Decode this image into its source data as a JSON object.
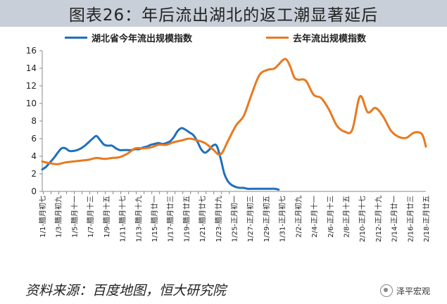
{
  "title": "图表26：年后流出湖北的返工潮显著延后",
  "footer": "资料来源：百度地图，恒大研究院",
  "watermark": "泽平宏观",
  "colors": {
    "series_2020": "#1f6fbf",
    "series_2019": "#e8791f",
    "title_band": "#c8cfd8"
  },
  "chart_data": {
    "type": "line",
    "title": "图表26：年后流出湖北的返工潮显著延后",
    "xlabel": "",
    "ylabel": "",
    "ylim": [
      0,
      16
    ],
    "yticks": [
      0,
      2,
      4,
      6,
      8,
      10,
      12,
      14,
      16
    ],
    "grid": false,
    "legend_position": "top",
    "x_tick_labels": [
      "1/1-腊月初七",
      "1/3-腊月初九",
      "1/5-腊月十一",
      "1/7-腊月十三",
      "1/9-腊月十五",
      "1/11-腊月十七",
      "1/13-腊月十九",
      "1/15-腊月廿一",
      "1/17-腊月廿三",
      "1/19-腊月廿五",
      "1/21-腊月廿七",
      "1/23-腊月廿九",
      "1/25-正月初一",
      "1/27-正月初三",
      "1/29-正月初五",
      "1/31-正月初七",
      "2/2-正月初九",
      "2/4-正月十一",
      "2/6-正月十三",
      "2/8-正月十五",
      "2/10-正月十七",
      "2/12-正月十九",
      "2/14-正月廿一",
      "2/16-正月廿三",
      "2/18-正月廿五"
    ],
    "series": [
      {
        "name": "湖北省今年流出规模指数",
        "color": "#1f6fbf",
        "x_day": [
          1,
          2,
          3,
          4,
          5,
          6,
          7,
          8,
          9,
          10,
          11,
          12,
          13,
          14,
          15,
          16,
          17,
          18,
          19,
          20,
          21,
          22,
          23,
          24,
          25,
          26,
          27,
          28,
          29,
          30,
          31,
          32,
          33,
          34,
          35,
          36,
          37,
          38,
          39,
          40,
          41,
          42,
          43,
          44,
          45,
          46,
          47,
          48,
          49,
          50,
          51,
          52,
          53,
          54,
          55,
          56,
          57,
          58,
          59,
          60,
          61,
          62
        ],
        "values": [
          2.5,
          2.8,
          3.3,
          3.8,
          4.4,
          4.9,
          4.9,
          4.6,
          4.6,
          4.7,
          4.9,
          5.2,
          5.6,
          6.0,
          6.3,
          5.8,
          5.3,
          5.2,
          5.2,
          4.9,
          4.7,
          4.7,
          4.7,
          4.7,
          4.8,
          4.8,
          5.0,
          5.1,
          5.3,
          5.4,
          5.5,
          5.4,
          5.5,
          5.7,
          6.2,
          6.9,
          7.2,
          7.0,
          6.7,
          6.4,
          5.7,
          4.8,
          4.4,
          4.7,
          5.2,
          5.2,
          3.8,
          2.0,
          1.1,
          0.7,
          0.5,
          0.4,
          0.4,
          0.3,
          0.3,
          0.3,
          0.3,
          0.3,
          0.3,
          0.3,
          0.3,
          0.2
        ]
      },
      {
        "name": "去年流出规模指数",
        "color": "#e8791f",
        "x_day": [
          1,
          3,
          5,
          7,
          9,
          11,
          13,
          15,
          17,
          19,
          21,
          23,
          25,
          27,
          29,
          31,
          33,
          35,
          37,
          39,
          41,
          43,
          45,
          47,
          49,
          51,
          53,
          55,
          57,
          59,
          61,
          63,
          64,
          65,
          66,
          67,
          69,
          71,
          73,
          75,
          77,
          79,
          81,
          83,
          85,
          87,
          89,
          91,
          93,
          95,
          97,
          99,
          100
        ],
        "values": [
          3.4,
          3.2,
          3.1,
          3.3,
          3.4,
          3.5,
          3.6,
          3.8,
          3.7,
          3.8,
          3.9,
          4.3,
          4.9,
          4.9,
          5.0,
          5.3,
          5.3,
          5.6,
          5.8,
          6.0,
          5.8,
          5.5,
          4.8,
          4.2,
          5.8,
          7.5,
          8.6,
          11.0,
          13.2,
          13.8,
          14.0,
          14.9,
          15.0,
          14.2,
          13.0,
          12.7,
          12.6,
          11.0,
          10.6,
          9.3,
          7.5,
          6.8,
          7.0,
          10.8,
          9.0,
          9.5,
          8.5,
          6.9,
          6.2,
          6.1,
          6.7,
          6.5,
          5.1
        ]
      }
    ]
  }
}
